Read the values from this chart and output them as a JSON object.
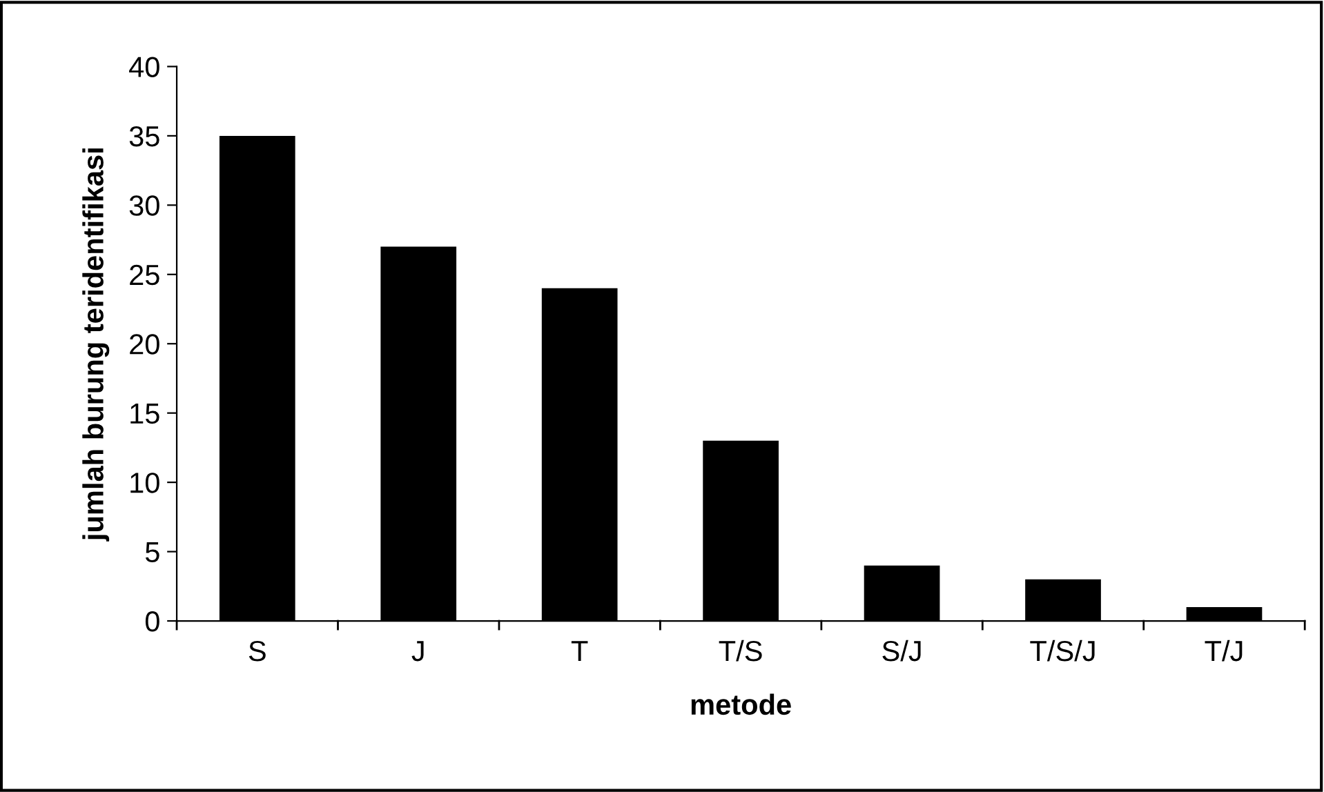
{
  "chart_data": {
    "type": "bar",
    "xlabel": "metode",
    "ylabel": "jumlah burung teridentifikasi",
    "categories": [
      "S",
      "J",
      "T",
      "T/S",
      "S/J",
      "T/S/J",
      "T/J"
    ],
    "values": [
      35,
      27,
      24,
      13,
      4,
      3,
      1
    ],
    "color": "#000000",
    "ylim": [
      0,
      40
    ],
    "yticks": [
      0,
      5,
      10,
      15,
      20,
      25,
      30,
      35,
      40
    ],
    "grid": false,
    "legend": false
  }
}
